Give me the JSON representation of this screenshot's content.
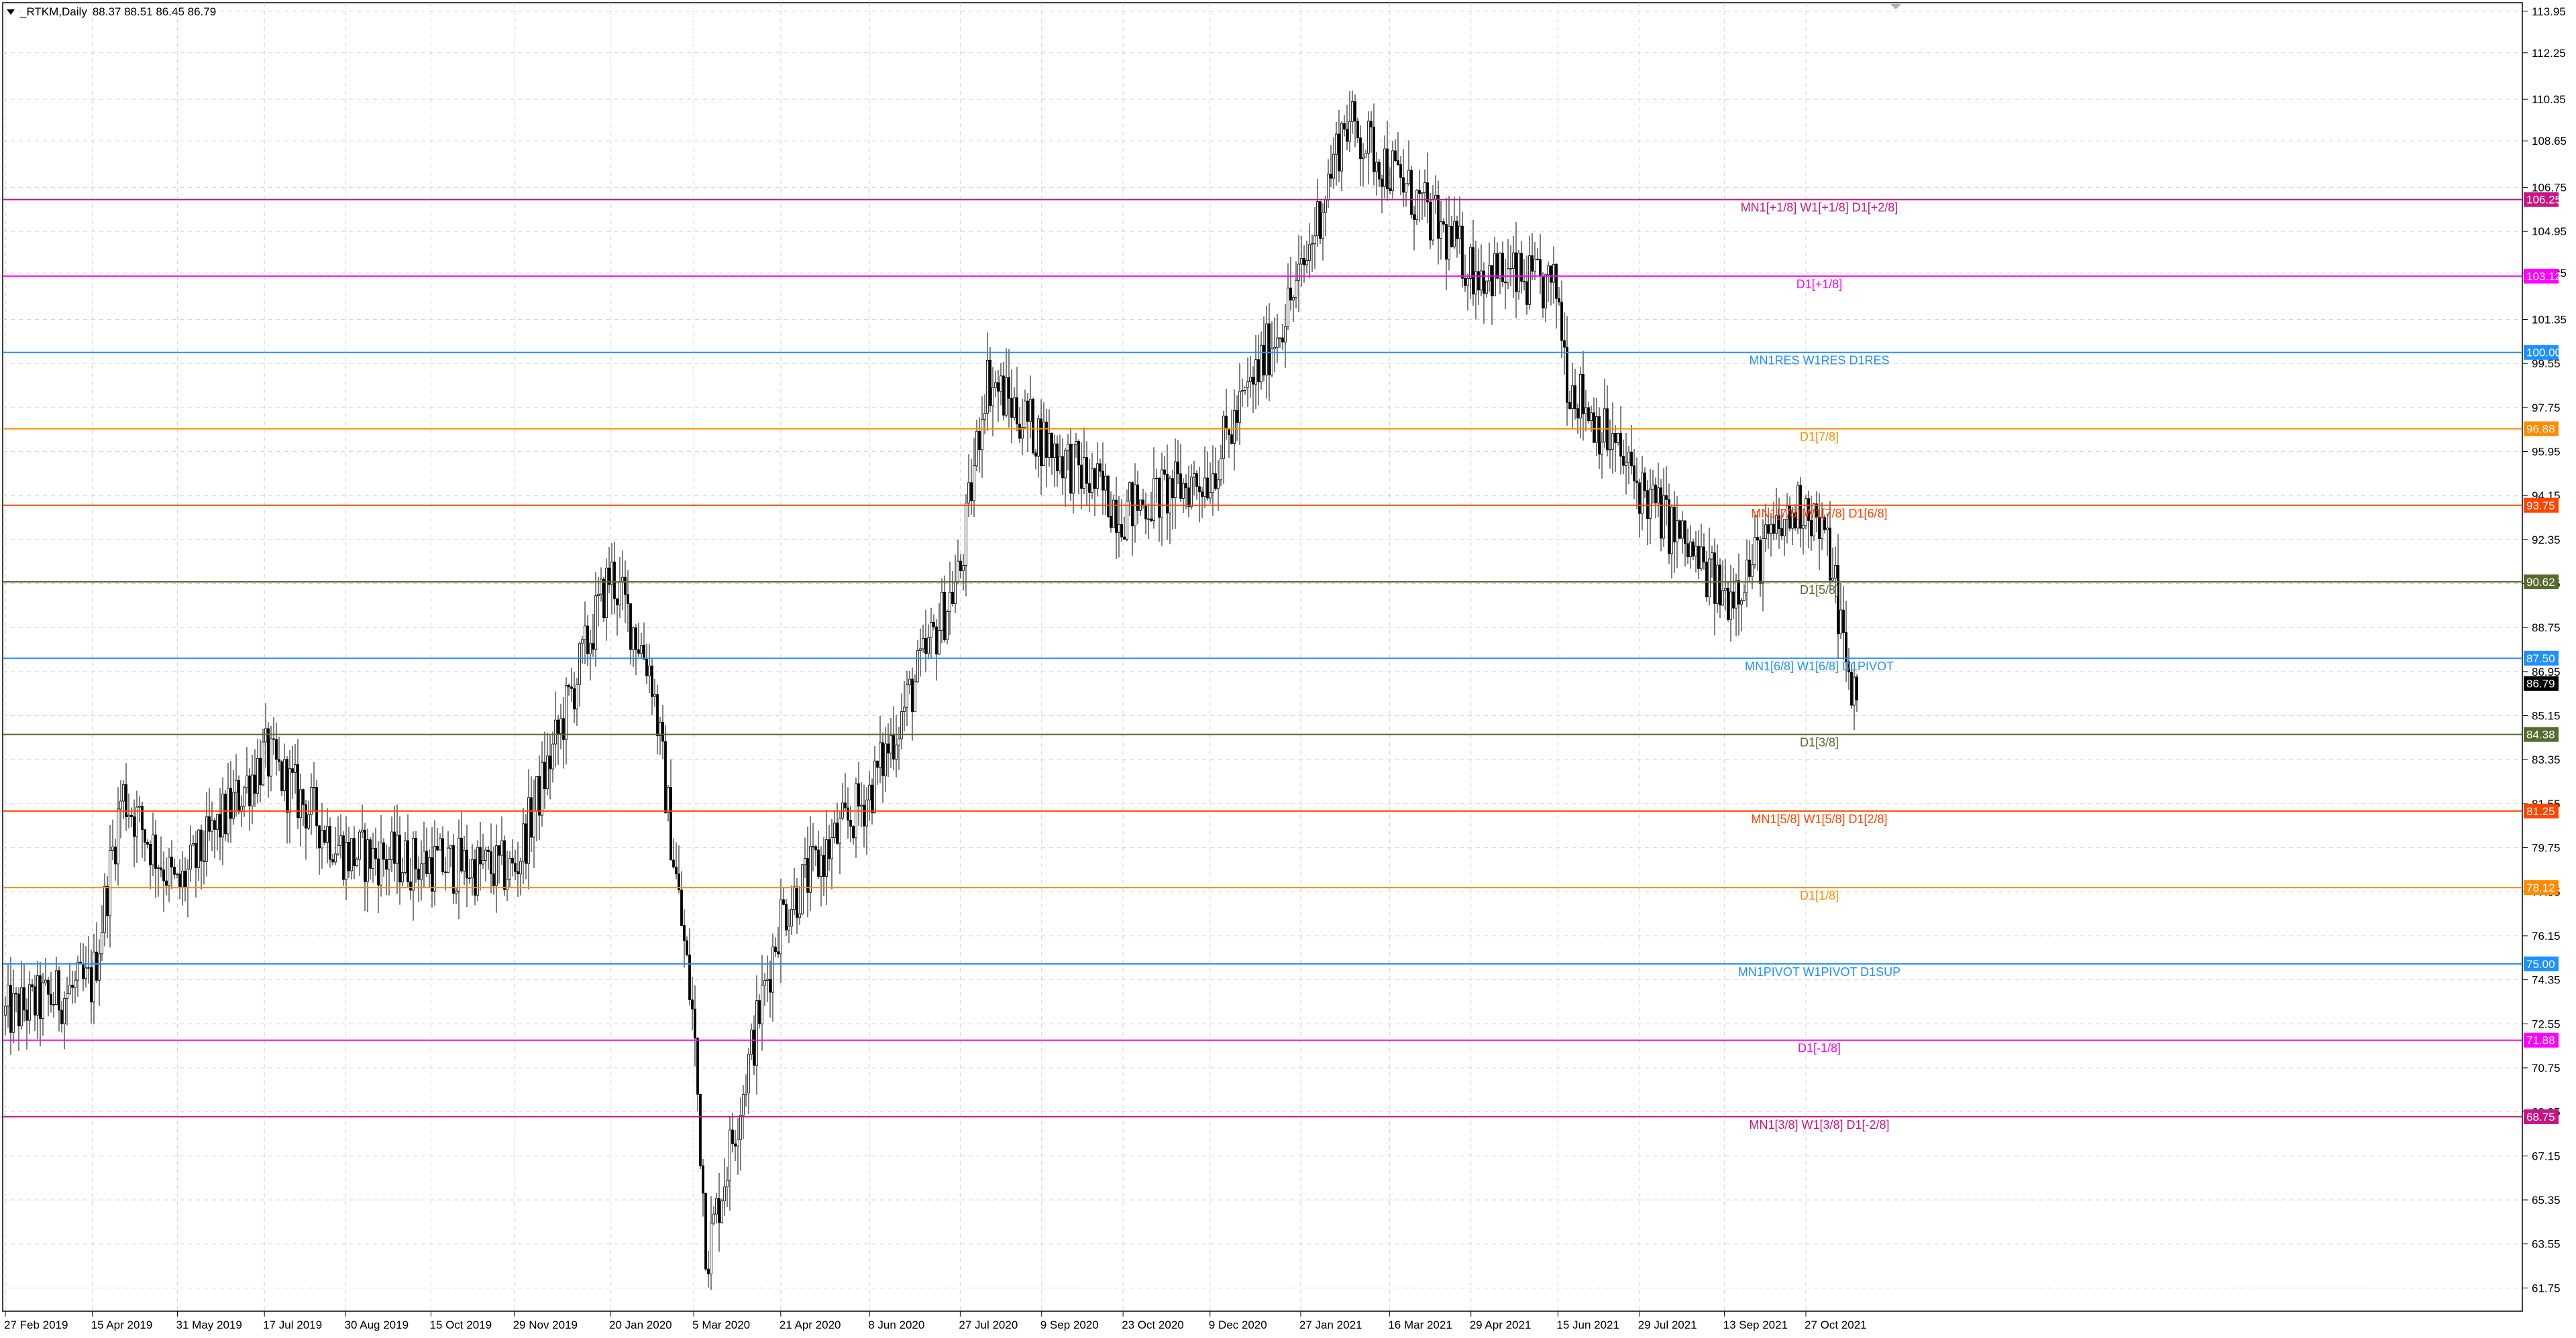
{
  "header": {
    "symbol": "_RTKM,Daily",
    "ohlc": "88.37 88.51 86.45 86.79"
  },
  "chart_data": {
    "type": "candlestick",
    "y_range": [
      60.8,
      114.3
    ],
    "price_ticks": [
      "113.95",
      "112.25",
      "110.35",
      "108.65",
      "106.75",
      "104.95",
      "103.25",
      "101.35",
      "99.55",
      "97.75",
      "95.95",
      "94.15",
      "92.35",
      "90.55",
      "88.75",
      "86.95",
      "85.15",
      "83.35",
      "81.55",
      "79.75",
      "77.95",
      "76.15",
      "74.35",
      "72.55",
      "70.75",
      "68.95",
      "67.15",
      "65.35",
      "63.55",
      "61.75"
    ],
    "date_labels": [
      "27 Feb 2019",
      "15 Apr 2019",
      "31 May 2019",
      "17 Jul 2019",
      "30 Aug 2019",
      "15 Oct 2019",
      "29 Nov 2019",
      "20 Jan 2020",
      "5 Mar 2020",
      "21 Apr 2020",
      "8 Jun 2020",
      "27 Jul 2020",
      "9 Sep 2020",
      "23 Oct 2020",
      "9 Dec 2020",
      "27 Jan 2021",
      "16 Mar 2021",
      "29 Apr 2021",
      "15 Jun 2021",
      "29 Jul 2021",
      "13 Sep 2021",
      "27 Oct 2021"
    ],
    "levels": [
      {
        "price": 106.25,
        "tag": "106.25",
        "label": "MN1[+1/8] W1[+1/8] D1[+2/8]",
        "color": "#c71585"
      },
      {
        "price": 103.12,
        "tag": "103.12",
        "label": "D1[+1/8]",
        "color": "#ff00ff"
      },
      {
        "price": 100.0,
        "tag": "100.00",
        "label": "MN1RES W1RES D1RES",
        "color": "#1e90ff"
      },
      {
        "price": 96.88,
        "tag": "96.88",
        "label": "D1[7/8]",
        "color": "#ff8c00"
      },
      {
        "price": 93.75,
        "tag": "93.75",
        "label": "MN1[7/8] W1[7/8] D1[6/8]",
        "color": "#ff4500"
      },
      {
        "price": 90.62,
        "tag": "90.62",
        "label": "D1[5/8]",
        "color": "#556b2f"
      },
      {
        "price": 87.5,
        "tag": "87.50",
        "label": "MN1[6/8] W1[6/8] D1PIVOT",
        "color": "#1e90ff"
      },
      {
        "price": 84.38,
        "tag": "84.38",
        "label": "D1[3/8]",
        "color": "#556b2f"
      },
      {
        "price": 81.25,
        "tag": "81.25",
        "label": "MN1[5/8] W1[5/8] D1[2/8]",
        "color": "#ff4500"
      },
      {
        "price": 78.12,
        "tag": "78.12",
        "label": "D1[1/8]",
        "color": "#ff8c00"
      },
      {
        "price": 75.0,
        "tag": "75.00",
        "label": "MN1PIVOT W1PIVOT D1SUP",
        "color": "#1e90ff"
      },
      {
        "price": 71.88,
        "tag": "71.88",
        "label": "D1[-1/8]",
        "color": "#ff00ff"
      },
      {
        "price": 68.75,
        "tag": "68.75",
        "label": "MN1[3/8] W1[3/8] D1[-2/8]",
        "color": "#c71585"
      }
    ],
    "current_price": {
      "price": 86.79,
      "tag": "86.79",
      "color": "#000000"
    },
    "price_path": [
      [
        "27 Feb 2019",
        72.9
      ],
      [
        "15 Apr 2019",
        74.2
      ],
      [
        "1 May 2019",
        82.0
      ],
      [
        "31 May 2019",
        78.0
      ],
      [
        "17 Jul 2019",
        83.5
      ],
      [
        "30 Aug 2019",
        79.5
      ],
      [
        "15 Oct 2019",
        79.1
      ],
      [
        "29 Nov 2019",
        78.8
      ],
      [
        "20 Jan 2020",
        91.0
      ],
      [
        "11 Feb 2020",
        87.0
      ],
      [
        "5 Mar 2020",
        72.5
      ],
      [
        "12 Mar 2020",
        63.0
      ],
      [
        "21 Apr 2020",
        77.0
      ],
      [
        "8 Jun 2020",
        82.0
      ],
      [
        "27 Jul 2020",
        91.0
      ],
      [
        "10 Aug 2020",
        99.0
      ],
      [
        "9 Sep 2020",
        96.5
      ],
      [
        "23 Oct 2020",
        93.5
      ],
      [
        "9 Dec 2020",
        95.0
      ],
      [
        "27 Jan 2021",
        103.0
      ],
      [
        "20 Feb 2021",
        109.5
      ],
      [
        "16 Mar 2021",
        107.5
      ],
      [
        "29 Apr 2021",
        103.5
      ],
      [
        "15 Jun 2021",
        102.5
      ],
      [
        "20 Jun 2021",
        99.0
      ],
      [
        "29 Jul 2021",
        94.5
      ],
      [
        "13 Sep 2021",
        90.0
      ],
      [
        "27 Oct 2021",
        94.0
      ],
      [
        "10 Nov 2021",
        91.5
      ],
      [
        "20 Nov 2021",
        86.0
      ],
      [
        "25 Nov 2021",
        86.79
      ]
    ]
  }
}
